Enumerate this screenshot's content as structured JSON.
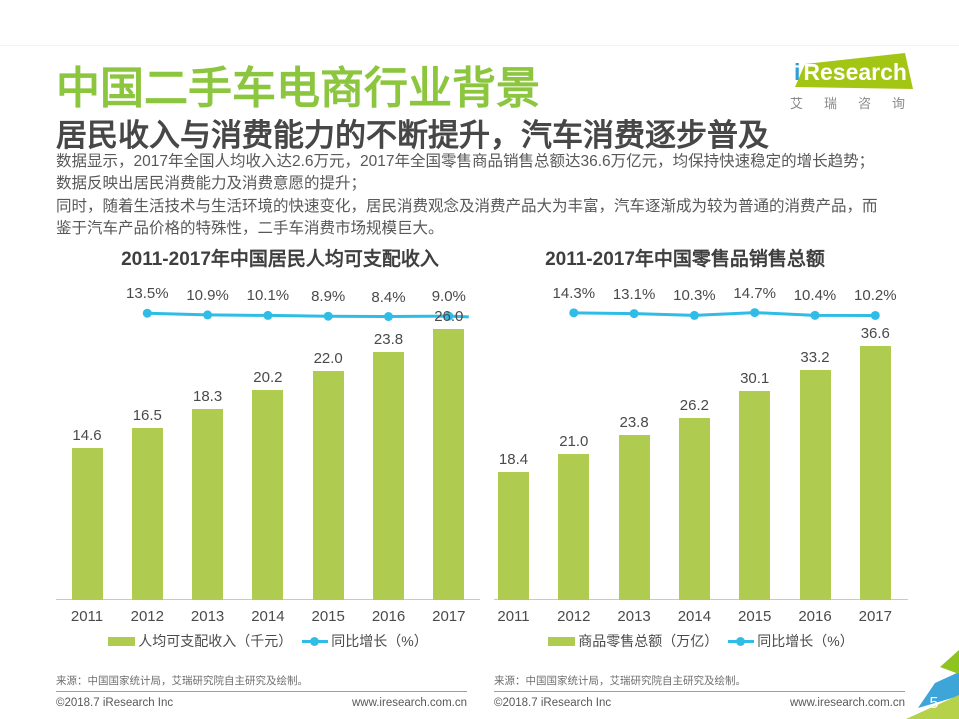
{
  "header": {
    "page_title": "中国二手车电商行业背景",
    "subtitle": "居民收入与消费能力的不断提升，汽车消费逐步普及",
    "body_lines": [
      "数据显示，2017年全国人均收入达2.6万元，2017年全国零售商品销售总额达36.6万亿元，均保持快速稳定的增长趋势；",
      "数据反映出居民消费能力及消费意愿的提升；",
      "同时，随着生活技术与生活环境的快速变化，居民消费观念及消费产品大为丰富，汽车逐渐成为较为普通的消费产品，而",
      "鉴于汽车产品价格的特殊性，二手车消费市场规模巨大。"
    ]
  },
  "logo": {
    "brand_i": "i",
    "brand_rest": "Research",
    "brand_cn": "艾瑞咨询"
  },
  "chart_data": [
    {
      "type": "bar+line",
      "title": "2011-2017年中国居民人均可支配收入",
      "categories": [
        "2011",
        "2012",
        "2013",
        "2014",
        "2015",
        "2016",
        "2017"
      ],
      "series": [
        {
          "name": "人均可支配收入（千元）",
          "type": "bar",
          "values": [
            14.6,
            16.5,
            18.3,
            20.2,
            22.0,
            23.8,
            26.0
          ]
        },
        {
          "name": "同比增长（%）",
          "type": "line",
          "values": [
            null,
            13.5,
            10.9,
            10.1,
            8.9,
            8.4,
            9.0
          ]
        }
      ],
      "legend": [
        "人均可支配收入（千元）",
        "同比增长（%）"
      ],
      "source": "来源：中国国家统计局，艾瑞研究院自主研究及绘制。",
      "grid": false,
      "legend_position": "bottom"
    },
    {
      "type": "bar+line",
      "title": "2011-2017年中国零售品销售总额",
      "categories": [
        "2011",
        "2012",
        "2013",
        "2014",
        "2015",
        "2016",
        "2017"
      ],
      "series": [
        {
          "name": "商品零售总额（万亿）",
          "type": "bar",
          "values": [
            18.4,
            21.0,
            23.8,
            26.2,
            30.1,
            33.2,
            36.6
          ]
        },
        {
          "name": "同比增长（%）",
          "type": "line",
          "values": [
            null,
            14.3,
            13.1,
            10.3,
            14.7,
            10.4,
            10.2
          ]
        }
      ],
      "legend": [
        "商品零售总额（万亿）",
        "同比增长（%）"
      ],
      "source": "来源：中国国家统计局，艾瑞研究院自主研究及绘制。",
      "grid": false,
      "legend_position": "bottom"
    }
  ],
  "footer": {
    "left": {
      "copyright": "©2018.7 iResearch Inc",
      "site": "www.iresearch.com.cn"
    },
    "right": {
      "copyright": "©2018.7 iResearch Inc",
      "site": "www.iresearch.com.cn"
    },
    "page_number": "5"
  },
  "colors": {
    "title_green": "#8CC63F",
    "bar_green": "#B0CC50",
    "line_cyan": "#2FBDE8",
    "logo_green": "#A3C614",
    "logo_blue": "#2E9FD6",
    "corner_blue": "#3EA5D9",
    "corner_green": "#8FC31F",
    "corner_light_green": "#B5D24A",
    "text_dark": "#474747",
    "text_body": "#595757"
  }
}
